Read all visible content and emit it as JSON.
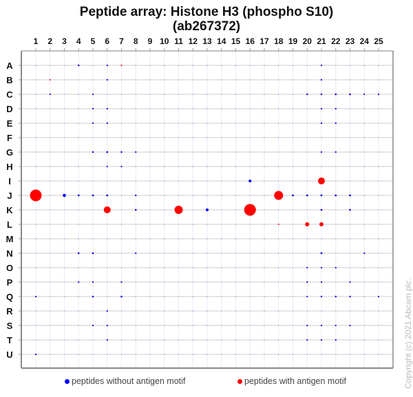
{
  "title_line1": "Peptide array:  Histone H3 (phospho S10)",
  "title_line2": "(ab267372)",
  "legend": {
    "blue_label": "peptides without antigen motif",
    "red_label": "peptides with antigen motif",
    "blue_color": "#0000ff",
    "red_color": "#ff0000"
  },
  "copyright": "Copyright (c) 2021 Abcam plc.",
  "chart_data": {
    "type": "scatter",
    "title": "Peptide array:  Histone H3 (phospho S10) (ab267372)",
    "xlabel": "",
    "ylabel": "",
    "x_ticks": [
      "1",
      "2",
      "3",
      "4",
      "5",
      "6",
      "7",
      "8",
      "9",
      "10",
      "11",
      "12",
      "13",
      "14",
      "15",
      "16",
      "17",
      "18",
      "19",
      "20",
      "21",
      "22",
      "23",
      "24",
      "25"
    ],
    "y_ticks": [
      "A",
      "B",
      "C",
      "D",
      "E",
      "F",
      "G",
      "H",
      "I",
      "J",
      "K",
      "L",
      "M",
      "N",
      "O",
      "P",
      "Q",
      "R",
      "S",
      "T",
      "U"
    ],
    "grid": true,
    "legend_position": "bottom",
    "series": [
      {
        "name": "peptides with antigen motif",
        "color": "#ff0000",
        "points": [
          {
            "col": 1,
            "row": "J",
            "size": 8.5
          },
          {
            "col": 16,
            "row": "K",
            "size": 8.5
          },
          {
            "col": 18,
            "row": "J",
            "size": 6.5
          },
          {
            "col": 11,
            "row": "K",
            "size": 6
          },
          {
            "col": 6,
            "row": "K",
            "size": 5
          },
          {
            "col": 21,
            "row": "I",
            "size": 5
          },
          {
            "col": 20,
            "row": "L",
            "size": 3
          },
          {
            "col": 21,
            "row": "L",
            "size": 3
          },
          {
            "col": 18,
            "row": "L",
            "size": 1
          },
          {
            "col": 7,
            "row": "A",
            "size": 1
          },
          {
            "col": 2,
            "row": "B",
            "size": 1
          }
        ]
      },
      {
        "name": "peptides without antigen motif",
        "color": "#0000ff",
        "points": [
          {
            "col": 3,
            "row": "J",
            "size": 2.3
          },
          {
            "col": 13,
            "row": "K",
            "size": 2
          },
          {
            "col": 16,
            "row": "I",
            "size": 2
          },
          {
            "col": 4,
            "row": "J",
            "size": 1.4
          },
          {
            "col": 5,
            "row": "J",
            "size": 1.4
          },
          {
            "col": 6,
            "row": "J",
            "size": 1.4
          },
          {
            "col": 8,
            "row": "J",
            "size": 1.2
          },
          {
            "col": 19,
            "row": "J",
            "size": 1.4
          },
          {
            "col": 20,
            "row": "J",
            "size": 1.4
          },
          {
            "col": 21,
            "row": "J",
            "size": 1.4
          },
          {
            "col": 22,
            "row": "J",
            "size": 1.4
          },
          {
            "col": 23,
            "row": "J",
            "size": 1.4
          },
          {
            "col": 8,
            "row": "K",
            "size": 1.3
          },
          {
            "col": 21,
            "row": "K",
            "size": 1.3
          },
          {
            "col": 23,
            "row": "K",
            "size": 1.3
          },
          {
            "col": 4,
            "row": "A",
            "size": 1.2
          },
          {
            "col": 6,
            "row": "A",
            "size": 1.1
          },
          {
            "col": 21,
            "row": "A",
            "size": 1.1
          },
          {
            "col": 6,
            "row": "B",
            "size": 1.1
          },
          {
            "col": 21,
            "row": "B",
            "size": 1.1
          },
          {
            "col": 2,
            "row": "C",
            "size": 1.1
          },
          {
            "col": 5,
            "row": "C",
            "size": 1.1
          },
          {
            "col": 20,
            "row": "C",
            "size": 1.2
          },
          {
            "col": 21,
            "row": "C",
            "size": 1.2
          },
          {
            "col": 22,
            "row": "C",
            "size": 1.3
          },
          {
            "col": 23,
            "row": "C",
            "size": 1.3
          },
          {
            "col": 24,
            "row": "C",
            "size": 1.1
          },
          {
            "col": 25,
            "row": "C",
            "size": 1.1
          },
          {
            "col": 5,
            "row": "D",
            "size": 1.1
          },
          {
            "col": 6,
            "row": "D",
            "size": 1.1
          },
          {
            "col": 21,
            "row": "D",
            "size": 1.1
          },
          {
            "col": 22,
            "row": "D",
            "size": 1.1
          },
          {
            "col": 5,
            "row": "E",
            "size": 1.1
          },
          {
            "col": 6,
            "row": "E",
            "size": 1.1
          },
          {
            "col": 21,
            "row": "E",
            "size": 1.1
          },
          {
            "col": 22,
            "row": "E",
            "size": 1.1
          },
          {
            "col": 5,
            "row": "G",
            "size": 1.2
          },
          {
            "col": 6,
            "row": "G",
            "size": 1.3
          },
          {
            "col": 7,
            "row": "G",
            "size": 1.2
          },
          {
            "col": 8,
            "row": "G",
            "size": 1.1
          },
          {
            "col": 21,
            "row": "G",
            "size": 1.1
          },
          {
            "col": 22,
            "row": "G",
            "size": 1.1
          },
          {
            "col": 6,
            "row": "H",
            "size": 1.1
          },
          {
            "col": 7,
            "row": "H",
            "size": 1.1
          },
          {
            "col": 4,
            "row": "N",
            "size": 1.3
          },
          {
            "col": 5,
            "row": "N",
            "size": 1.3
          },
          {
            "col": 8,
            "row": "N",
            "size": 1.1
          },
          {
            "col": 21,
            "row": "N",
            "size": 1.4
          },
          {
            "col": 24,
            "row": "N",
            "size": 1.1
          },
          {
            "col": 4,
            "row": "P",
            "size": 1.1
          },
          {
            "col": 5,
            "row": "P",
            "size": 1.1
          },
          {
            "col": 7,
            "row": "P",
            "size": 1.1
          },
          {
            "col": 20,
            "row": "O",
            "size": 1.1
          },
          {
            "col": 21,
            "row": "O",
            "size": 1.1
          },
          {
            "col": 22,
            "row": "O",
            "size": 1.1
          },
          {
            "col": 20,
            "row": "P",
            "size": 1.1
          },
          {
            "col": 21,
            "row": "P",
            "size": 1.1
          },
          {
            "col": 23,
            "row": "P",
            "size": 1.1
          },
          {
            "col": 5,
            "row": "Q",
            "size": 1.3
          },
          {
            "col": 7,
            "row": "Q",
            "size": 1.3
          },
          {
            "col": 1,
            "row": "Q",
            "size": 1.1
          },
          {
            "col": 20,
            "row": "Q",
            "size": 1.1
          },
          {
            "col": 21,
            "row": "Q",
            "size": 1.2
          },
          {
            "col": 22,
            "row": "Q",
            "size": 1.2
          },
          {
            "col": 23,
            "row": "Q",
            "size": 1.2
          },
          {
            "col": 25,
            "row": "Q",
            "size": 1.1
          },
          {
            "col": 6,
            "row": "R",
            "size": 1.1
          },
          {
            "col": 5,
            "row": "S",
            "size": 1.1
          },
          {
            "col": 6,
            "row": "S",
            "size": 1.1
          },
          {
            "col": 20,
            "row": "S",
            "size": 1.1
          },
          {
            "col": 21,
            "row": "S",
            "size": 1.1
          },
          {
            "col": 22,
            "row": "S",
            "size": 1.1
          },
          {
            "col": 23,
            "row": "S",
            "size": 1.1
          },
          {
            "col": 6,
            "row": "T",
            "size": 1.1
          },
          {
            "col": 20,
            "row": "T",
            "size": 1.1
          },
          {
            "col": 21,
            "row": "T",
            "size": 1.1
          },
          {
            "col": 22,
            "row": "T",
            "size": 1.1
          },
          {
            "col": 1,
            "row": "U",
            "size": 1.1
          }
        ]
      }
    ]
  }
}
